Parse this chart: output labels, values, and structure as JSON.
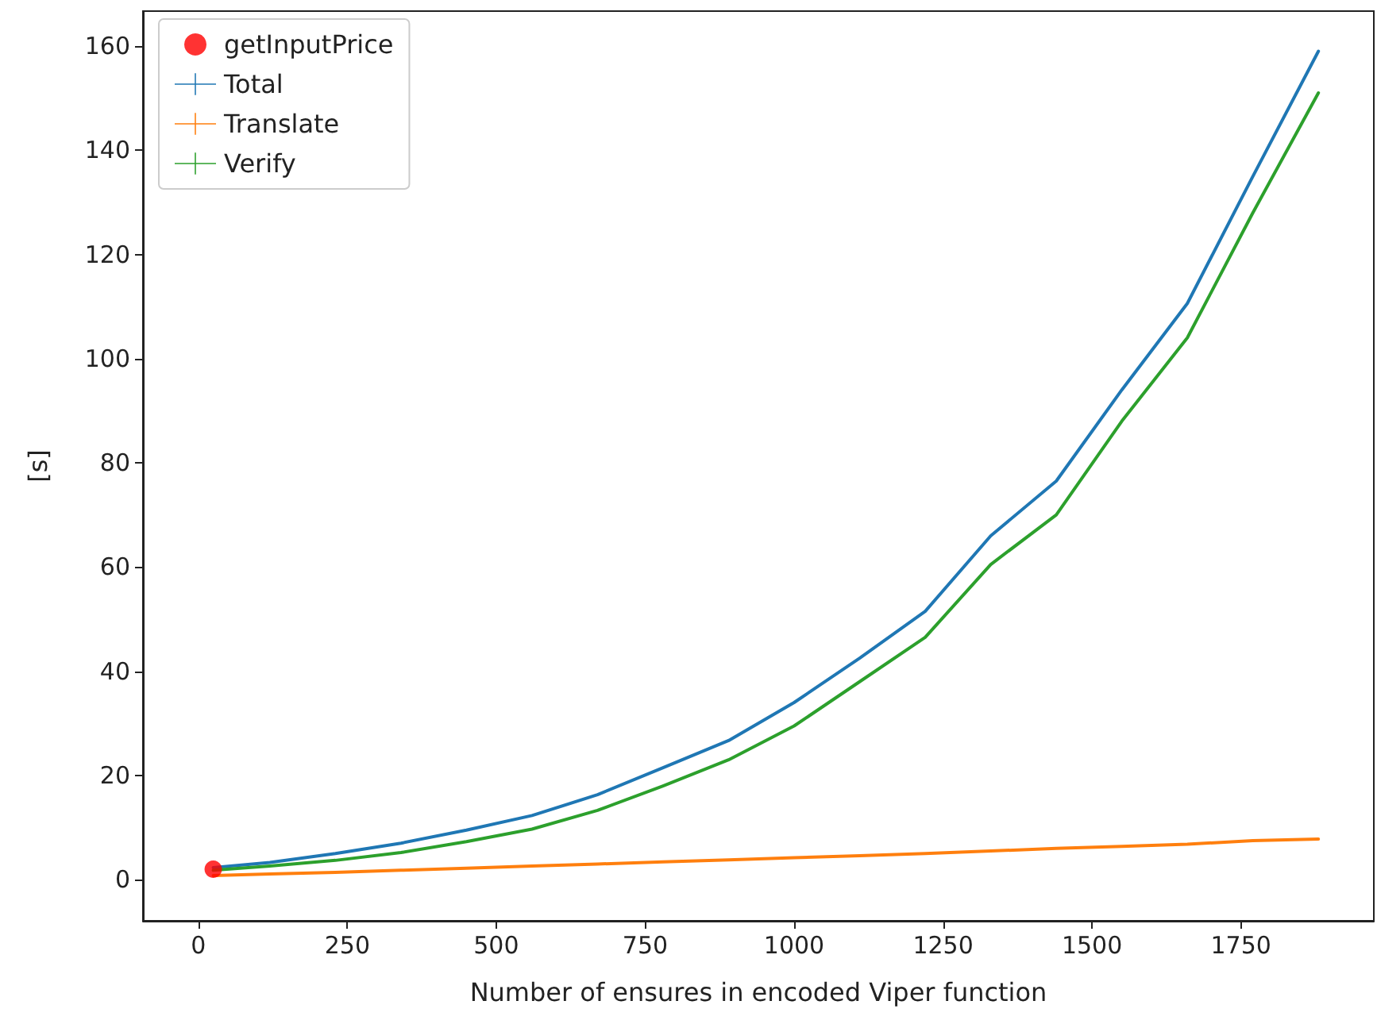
{
  "chart_data": {
    "type": "line",
    "xlabel": "Number of ensures in encoded Viper function",
    "ylabel": "[s]",
    "x": [
      25,
      120,
      230,
      340,
      450,
      560,
      670,
      780,
      890,
      1000,
      1110,
      1220,
      1330,
      1440,
      1550,
      1660,
      1770,
      1880
    ],
    "series": [
      {
        "name": "getInputPrice",
        "type": "scatter",
        "marker": "circle",
        "color": "#ff0000",
        "x": [
          25
        ],
        "values": [
          2
        ]
      },
      {
        "name": "Total",
        "color": "#1f77b4",
        "values": [
          2.3,
          3.3,
          5,
          7,
          9.5,
          12.3,
          16.3,
          21.5,
          26.7,
          34,
          42.5,
          51.5,
          66,
          76.5,
          94,
          110.6,
          135,
          159
        ]
      },
      {
        "name": "Translate",
        "color": "#ff7f0e",
        "values": [
          0.8,
          1.1,
          1.4,
          1.8,
          2.2,
          2.6,
          3.0,
          3.4,
          3.8,
          4.2,
          4.6,
          5.0,
          5.5,
          6.0,
          6.4,
          6.8,
          7.5,
          7.8
        ]
      },
      {
        "name": "Verify",
        "color": "#2ca02c",
        "values": [
          1.8,
          2.6,
          3.7,
          5.2,
          7.3,
          9.7,
          13.3,
          18,
          23,
          29.5,
          38,
          46.5,
          60.5,
          70,
          88,
          104,
          128,
          151
        ]
      }
    ],
    "marker": "none",
    "line_style": "solid",
    "xlim": [
      -93,
      1973
    ],
    "ylim": [
      -7.9,
      166.7
    ],
    "xticks": [
      0,
      250,
      500,
      750,
      1000,
      1250,
      1500,
      1750
    ],
    "yticks": [
      0,
      20,
      40,
      60,
      80,
      100,
      120,
      140,
      160
    ],
    "legend": "top left"
  }
}
